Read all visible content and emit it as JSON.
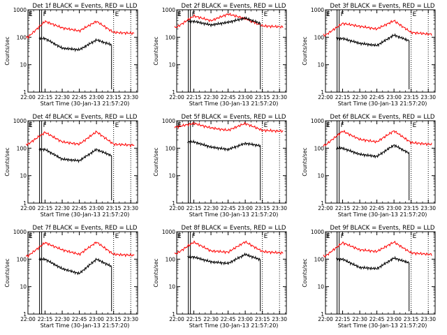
{
  "figure": {
    "ylabel": "Counts/sec",
    "xlabel": "Start Time (30-Jan-13 21:57:20)",
    "xticks": [
      "22:00",
      "22:15",
      "22:30",
      "22:45",
      "23:00",
      "23:15",
      "23:30"
    ],
    "yticks": [
      "1",
      "10",
      "100",
      "1000"
    ],
    "colors": {
      "events": "#000000",
      "lld": "#ff0000"
    },
    "marker_labels": [
      "F",
      "E"
    ]
  },
  "chart_data": [
    {
      "type": "line",
      "title": "Det 1f BLACK = Events, RED = LLD",
      "x": [
        22.0,
        22.25,
        22.5,
        22.75,
        23.0,
        23.25,
        23.5
      ],
      "events": {
        "start": 22.16,
        "end": 23.22,
        "values": [
          null,
          90,
          40,
          35,
          80,
          50,
          null
        ]
      },
      "lld": {
        "start": 21.97,
        "end": 23.55,
        "values": [
          100,
          380,
          220,
          170,
          380,
          150,
          140
        ]
      },
      "markers": {
        "F": 22.2,
        "E": 23.25,
        "end": 23.5
      },
      "ylim": [
        1,
        1000
      ],
      "yscale": "log"
    },
    {
      "type": "line",
      "title": "Det 2f BLACK = Events, RED = LLD",
      "x": [
        22.0,
        22.25,
        22.5,
        22.75,
        23.0,
        23.25,
        23.5
      ],
      "events": {
        "start": 22.16,
        "end": 23.22,
        "values": [
          null,
          380,
          280,
          350,
          500,
          300,
          null
        ]
      },
      "lld": {
        "start": 21.97,
        "end": 23.55,
        "values": [
          230,
          600,
          400,
          700,
          480,
          260,
          240
        ]
      },
      "markers": {
        "F": 22.2,
        "E": 23.25,
        "end": 23.5
      },
      "ylim": [
        1,
        1000
      ],
      "yscale": "log"
    },
    {
      "type": "line",
      "title": "Det 3f BLACK = Events, RED = LLD",
      "x": [
        22.0,
        22.25,
        22.5,
        22.75,
        23.0,
        23.25,
        23.5
      ],
      "events": {
        "start": 22.16,
        "end": 23.22,
        "values": [
          null,
          90,
          60,
          50,
          120,
          70,
          null
        ]
      },
      "lld": {
        "start": 21.97,
        "end": 23.55,
        "values": [
          120,
          320,
          250,
          200,
          400,
          150,
          130
        ]
      },
      "markers": {
        "F": 22.2,
        "E": 23.25,
        "end": 23.5
      },
      "ylim": [
        1,
        1000
      ],
      "yscale": "log"
    },
    {
      "type": "line",
      "title": "Det 4f BLACK = Events, RED = LLD",
      "x": [
        22.0,
        22.25,
        22.5,
        22.75,
        23.0,
        23.25,
        23.5
      ],
      "events": {
        "start": 22.16,
        "end": 23.22,
        "values": [
          null,
          90,
          40,
          35,
          90,
          50,
          null
        ]
      },
      "lld": {
        "start": 21.97,
        "end": 23.55,
        "values": [
          140,
          380,
          170,
          140,
          400,
          140,
          130
        ]
      },
      "markers": {
        "F": 22.2,
        "E": 23.25,
        "end": 23.5
      },
      "ylim": [
        1,
        1000
      ],
      "yscale": "log"
    },
    {
      "type": "line",
      "title": "Det 5f BLACK = Events, RED = LLD",
      "x": [
        22.0,
        22.25,
        22.5,
        22.75,
        23.0,
        23.25,
        23.5
      ],
      "events": {
        "start": 22.16,
        "end": 23.22,
        "values": [
          null,
          170,
          110,
          90,
          150,
          120,
          null
        ]
      },
      "lld": {
        "start": 21.97,
        "end": 23.55,
        "values": [
          600,
          800,
          550,
          450,
          800,
          450,
          420
        ]
      },
      "markers": {
        "F": 22.2,
        "E": 23.25,
        "end": 23.5
      },
      "ylim": [
        1,
        1000
      ],
      "yscale": "log"
    },
    {
      "type": "line",
      "title": "Det 6f BLACK = Events, RED = LLD",
      "x": [
        22.0,
        22.25,
        22.5,
        22.75,
        23.0,
        23.25,
        23.5
      ],
      "events": {
        "start": 22.16,
        "end": 23.22,
        "values": [
          null,
          100,
          60,
          50,
          130,
          60,
          null
        ]
      },
      "lld": {
        "start": 21.97,
        "end": 23.55,
        "values": [
          130,
          420,
          210,
          170,
          430,
          160,
          140
        ]
      },
      "markers": {
        "F": 22.2,
        "E": 23.25,
        "end": 23.5
      },
      "ylim": [
        1,
        1000
      ],
      "yscale": "log"
    },
    {
      "type": "line",
      "title": "Det 7f BLACK = Events, RED = LLD",
      "x": [
        22.0,
        22.25,
        22.5,
        22.75,
        23.0,
        23.25,
        23.5
      ],
      "events": {
        "start": 22.16,
        "end": 23.22,
        "values": [
          null,
          100,
          45,
          30,
          100,
          50,
          null
        ]
      },
      "lld": {
        "start": 21.97,
        "end": 23.55,
        "values": [
          130,
          400,
          220,
          150,
          420,
          150,
          140
        ]
      },
      "markers": {
        "F": 22.2,
        "E": 23.25,
        "end": 23.5
      },
      "ylim": [
        1,
        1000
      ],
      "yscale": "log"
    },
    {
      "type": "line",
      "title": "Det 8f BLACK = Events, RED = LLD",
      "x": [
        22.0,
        22.25,
        22.5,
        22.75,
        23.0,
        23.25,
        23.5
      ],
      "events": {
        "start": 22.16,
        "end": 23.22,
        "values": [
          null,
          120,
          80,
          70,
          150,
          90,
          null
        ]
      },
      "lld": {
        "start": 21.97,
        "end": 23.55,
        "values": [
          160,
          420,
          200,
          180,
          430,
          190,
          170
        ]
      },
      "markers": {
        "F": 22.2,
        "E": 23.25,
        "end": 23.5
      },
      "ylim": [
        1,
        1000
      ],
      "yscale": "log"
    },
    {
      "type": "line",
      "title": "Det 9f BLACK = Events, RED = LLD",
      "x": [
        22.0,
        22.25,
        22.5,
        22.75,
        23.0,
        23.25,
        23.5
      ],
      "events": {
        "start": 22.16,
        "end": 23.22,
        "values": [
          null,
          100,
          50,
          45,
          110,
          70,
          null
        ]
      },
      "lld": {
        "start": 21.97,
        "end": 23.55,
        "values": [
          130,
          400,
          220,
          190,
          420,
          170,
          150
        ]
      },
      "markers": {
        "F": 22.2,
        "E": 23.25,
        "end": 23.5
      },
      "ylim": [
        1,
        1000
      ],
      "yscale": "log"
    }
  ]
}
